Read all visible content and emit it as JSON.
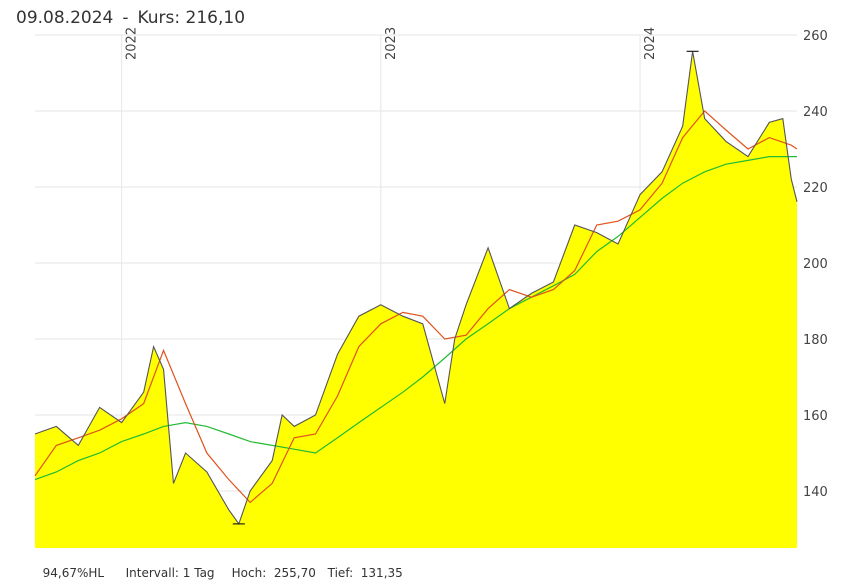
{
  "header": {
    "date": "09.08.2024",
    "separator": "-",
    "price_label": "Kurs: 216,10"
  },
  "footer": {
    "hl": "94,67%HL",
    "interval": "Intervall: 1 Tag",
    "high": "Hoch:  255,70",
    "low": "Tief:  131,35"
  },
  "colors": {
    "area_fill": "#ffff00",
    "price_line": "#555555",
    "ma_fast": "#e0521c",
    "ma_slow": "#22bb33",
    "grid": "#e6e6e6"
  },
  "chart_data": {
    "type": "area",
    "title": "",
    "xlabel": "",
    "ylabel": "",
    "ylim": [
      125,
      260
    ],
    "y_ticks": [
      140,
      160,
      180,
      200,
      220,
      240,
      260
    ],
    "x_range": [
      "2021-09-01",
      "2024-08-09"
    ],
    "x_ticks": [
      {
        "date": "2022-01-01",
        "label": "2022"
      },
      {
        "date": "2023-01-01",
        "label": "2023"
      },
      {
        "date": "2024-01-01",
        "label": "2024"
      }
    ],
    "grid": true,
    "markers": [
      {
        "date": "2024-03-15",
        "value": 255.7,
        "kind": "high"
      },
      {
        "date": "2022-06-15",
        "value": 131.35,
        "kind": "low"
      }
    ],
    "series": [
      {
        "role": "price",
        "x": [
          "2021-09-01",
          "2021-10-01",
          "2021-11-01",
          "2021-12-01",
          "2022-01-01",
          "2022-02-01",
          "2022-02-15",
          "2022-03-01",
          "2022-03-15",
          "2022-04-01",
          "2022-05-01",
          "2022-06-01",
          "2022-06-15",
          "2022-07-01",
          "2022-08-01",
          "2022-08-15",
          "2022-09-01",
          "2022-10-01",
          "2022-11-01",
          "2022-12-01",
          "2023-01-01",
          "2023-02-01",
          "2023-03-01",
          "2023-04-01",
          "2023-04-15",
          "2023-05-01",
          "2023-06-01",
          "2023-07-01",
          "2023-08-01",
          "2023-09-01",
          "2023-10-01",
          "2023-11-01",
          "2023-12-01",
          "2024-01-01",
          "2024-02-01",
          "2024-03-01",
          "2024-03-15",
          "2024-04-01",
          "2024-05-01",
          "2024-06-01",
          "2024-07-01",
          "2024-07-20",
          "2024-08-01",
          "2024-08-09"
        ],
        "values": [
          155,
          157,
          152,
          162,
          158,
          166,
          178,
          172,
          142,
          150,
          145,
          135,
          131.35,
          140,
          148,
          160,
          157,
          160,
          176,
          186,
          189,
          186,
          184,
          163,
          180,
          189,
          204,
          188,
          192,
          195,
          210,
          208,
          205,
          218,
          224,
          236,
          255.7,
          238,
          232,
          228,
          237,
          238,
          222,
          216.1
        ]
      },
      {
        "role": "ma_fast",
        "x": [
          "2021-09-01",
          "2021-10-01",
          "2021-11-01",
          "2021-12-01",
          "2022-01-01",
          "2022-02-01",
          "2022-03-01",
          "2022-04-01",
          "2022-05-01",
          "2022-06-01",
          "2022-07-01",
          "2022-08-01",
          "2022-09-01",
          "2022-10-01",
          "2022-11-01",
          "2022-12-01",
          "2023-01-01",
          "2023-02-01",
          "2023-03-01",
          "2023-04-01",
          "2023-05-01",
          "2023-06-01",
          "2023-07-01",
          "2023-08-01",
          "2023-09-01",
          "2023-10-01",
          "2023-11-01",
          "2023-12-01",
          "2024-01-01",
          "2024-02-01",
          "2024-03-01",
          "2024-04-01",
          "2024-05-01",
          "2024-06-01",
          "2024-07-01",
          "2024-08-01",
          "2024-08-09"
        ],
        "values": [
          144,
          152,
          154,
          156,
          159,
          163,
          177,
          163,
          150,
          143,
          137,
          142,
          154,
          155,
          165,
          178,
          184,
          187,
          186,
          180,
          181,
          188,
          193,
          191,
          193,
          198,
          210,
          211,
          214,
          221,
          233,
          240,
          235,
          230,
          233,
          231,
          230
        ]
      },
      {
        "role": "ma_slow",
        "x": [
          "2021-09-01",
          "2021-10-01",
          "2021-11-01",
          "2021-12-01",
          "2022-01-01",
          "2022-02-01",
          "2022-03-01",
          "2022-04-01",
          "2022-05-01",
          "2022-06-01",
          "2022-07-01",
          "2022-08-01",
          "2022-09-01",
          "2022-10-01",
          "2022-11-01",
          "2022-12-01",
          "2023-01-01",
          "2023-02-01",
          "2023-03-01",
          "2023-04-01",
          "2023-05-01",
          "2023-06-01",
          "2023-07-01",
          "2023-08-01",
          "2023-09-01",
          "2023-10-01",
          "2023-11-01",
          "2023-12-01",
          "2024-01-01",
          "2024-02-01",
          "2024-03-01",
          "2024-04-01",
          "2024-05-01",
          "2024-06-01",
          "2024-07-01",
          "2024-08-01",
          "2024-08-09"
        ],
        "values": [
          143,
          145,
          148,
          150,
          153,
          155,
          157,
          158,
          157,
          155,
          153,
          152,
          151,
          150,
          154,
          158,
          162,
          166,
          170,
          175,
          180,
          184,
          188,
          191,
          194,
          197,
          203,
          207,
          212,
          217,
          221,
          224,
          226,
          227,
          228,
          228,
          228
        ]
      }
    ]
  }
}
